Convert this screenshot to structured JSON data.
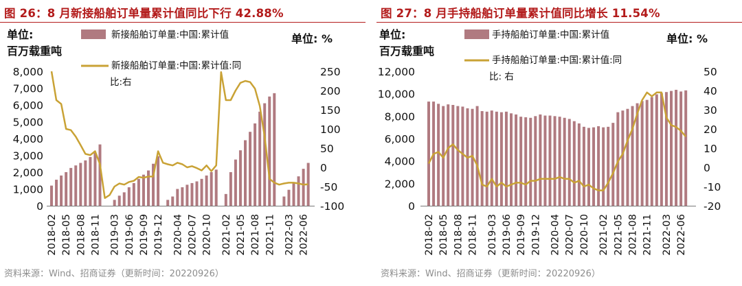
{
  "colors": {
    "bar": "#b07a80",
    "line": "#c9a235",
    "title": "#b31b1b",
    "source": "#8c8c8c"
  },
  "chart_data": [
    {
      "type": "bar",
      "title": "图 26：8 月新接船舶订单量累计值同比下行 42.88%",
      "source": "资料来源：Wind、招商证券（更新时间：20220926）",
      "left_unit": [
        "单位:",
        "百万载重吨"
      ],
      "right_unit": "单位:  %",
      "legend": [
        "新接船舶订单量:中国:累计值",
        "新接船舶订单量:中国:累计值:同",
        "比:右"
      ],
      "x_ticks": [
        "2018-02",
        "2018-05",
        "2018-08",
        "2018-11",
        "2019-03",
        "2019-06",
        "2019-09",
        "2019-12",
        "2020-04",
        "2020-07",
        "2020-10",
        "2021-02",
        "2021-05",
        "2021-08",
        "2021-11",
        "2022-03",
        "2022-06"
      ],
      "tick_months": [
        2,
        5,
        8,
        11,
        15,
        18,
        21,
        24,
        28,
        31,
        34,
        38,
        41,
        44,
        47,
        51,
        54
      ],
      "ylim_left": [
        0,
        8000
      ],
      "yticks_left": [
        0,
        1000,
        2000,
        3000,
        4000,
        5000,
        6000,
        7000,
        8000
      ],
      "yticks_left_labels": [
        "0",
        "1,000",
        "2,000",
        "3,000",
        "4,000",
        "5,000",
        "6,000",
        "7,000",
        "8,000"
      ],
      "ylim_right": [
        -100,
        250
      ],
      "yticks_right": [
        -100,
        -50,
        0,
        50,
        100,
        150,
        200,
        250
      ],
      "bar_series": {
        "name": "新接船舶订单量:中国:累计值",
        "months": [
          2,
          3,
          4,
          5,
          6,
          7,
          8,
          9,
          10,
          11,
          12,
          15,
          16,
          17,
          18,
          19,
          20,
          21,
          22,
          23,
          24,
          26,
          27,
          28,
          29,
          30,
          31,
          32,
          33,
          34,
          35,
          36,
          38,
          39,
          40,
          41,
          42,
          43,
          44,
          45,
          46,
          47,
          48,
          50,
          51,
          52,
          53,
          54,
          55
        ],
        "values": [
          1200,
          1550,
          1800,
          2000,
          2250,
          2400,
          2550,
          2700,
          2900,
          3150,
          3650,
          350,
          600,
          800,
          1100,
          1350,
          1600,
          1850,
          2100,
          2500,
          2950,
          350,
          550,
          1000,
          1100,
          1250,
          1350,
          1450,
          1600,
          1800,
          2000,
          2150,
          700,
          2000,
          2750,
          3300,
          3900,
          4400,
          4900,
          5600,
          6100,
          6500,
          6700,
          550,
          950,
          1350,
          1750,
          2200,
          2550
        ]
      },
      "line_series": {
        "name": "新接船舶订单量:中国:累计值:同比",
        "months": [
          2,
          3,
          4,
          5,
          6,
          7,
          8,
          9,
          10,
          11,
          12,
          13,
          14,
          15,
          16,
          17,
          18,
          19,
          20,
          21,
          22,
          23,
          24,
          25,
          26,
          27,
          28,
          29,
          30,
          31,
          32,
          33,
          34,
          35,
          36,
          37,
          38,
          39,
          40,
          41,
          42,
          43,
          44,
          45,
          46,
          47,
          48,
          49,
          50,
          51,
          52,
          53,
          54,
          55
        ],
        "values": [
          250,
          175,
          165,
          100,
          97,
          80,
          58,
          35,
          32,
          42,
          8,
          -80,
          -72,
          -50,
          -42,
          -45,
          -38,
          -35,
          -25,
          -27,
          -24,
          -24,
          42,
          12,
          8,
          5,
          12,
          8,
          0,
          3,
          -2,
          -8,
          5,
          -10,
          5,
          248,
          175,
          175,
          200,
          220,
          225,
          222,
          205,
          160,
          80,
          -30,
          -40,
          -45,
          -42,
          -40,
          -40,
          -42,
          -45,
          -44
        ]
      }
    },
    {
      "type": "bar",
      "title": "图 27：8 月手持船舶订单量累计值同比增长 11.54%",
      "source": "资料来源：Wind、招商证券（更新时间：20220926）",
      "left_unit": [
        "单位:",
        "百万载重吨"
      ],
      "right_unit": "单位:  %",
      "legend": [
        "手持船舶订单量:中国:累计值",
        "手持船舶订单量:中国:累计值:同",
        "比:  右"
      ],
      "x_ticks": [
        "2018-02",
        "2018-05",
        "2018-08",
        "2018-11",
        "2019-03",
        "2019-06",
        "2019-09",
        "2019-12",
        "2020-04",
        "2020-07",
        "2020-10",
        "2021-02",
        "2021-05",
        "2021-08",
        "2021-11",
        "2022-03",
        "2022-06"
      ],
      "tick_months": [
        2,
        5,
        8,
        11,
        15,
        18,
        21,
        24,
        28,
        31,
        34,
        38,
        41,
        44,
        47,
        51,
        54
      ],
      "ylim_left": [
        0,
        12000
      ],
      "yticks_left": [
        0,
        2000,
        4000,
        6000,
        8000,
        10000,
        12000
      ],
      "yticks_left_labels": [
        "0",
        "2,000",
        "4,000",
        "6,000",
        "8,000",
        "10,000",
        "12,000"
      ],
      "ylim_right": [
        -20,
        50
      ],
      "yticks_right": [
        -20,
        -10,
        0,
        10,
        20,
        30,
        40,
        50
      ],
      "bar_series": {
        "name": "手持船舶订单量:中国:累计值",
        "months": [
          2,
          3,
          4,
          5,
          6,
          7,
          8,
          9,
          10,
          11,
          12,
          13,
          14,
          15,
          16,
          17,
          18,
          19,
          20,
          21,
          22,
          23,
          24,
          25,
          26,
          27,
          28,
          29,
          30,
          31,
          32,
          33,
          34,
          35,
          36,
          37,
          38,
          39,
          40,
          41,
          42,
          43,
          44,
          45,
          46,
          47,
          48,
          49,
          50,
          51,
          52,
          53,
          54,
          55
        ],
        "values": [
          9300,
          9300,
          9100,
          8900,
          9050,
          9000,
          8900,
          8850,
          8700,
          8650,
          8900,
          8450,
          8400,
          8500,
          8400,
          8350,
          8400,
          8250,
          8150,
          7950,
          7900,
          7850,
          8000,
          8150,
          8050,
          8050,
          8000,
          7950,
          7850,
          7750,
          7550,
          7350,
          7050,
          6950,
          7000,
          7100,
          7000,
          7050,
          7400,
          8350,
          8500,
          8650,
          8900,
          9150,
          9350,
          9450,
          9700,
          9950,
          10050,
          10150,
          10250,
          10350,
          10200,
          10300
        ]
      },
      "line_series": {
        "name": "手持船舶订单量:中国:累计值:同比",
        "months": [
          2,
          3,
          4,
          5,
          6,
          7,
          8,
          9,
          10,
          11,
          12,
          13,
          14,
          15,
          16,
          17,
          18,
          19,
          20,
          21,
          22,
          23,
          24,
          25,
          26,
          27,
          28,
          29,
          30,
          31,
          32,
          33,
          34,
          35,
          36,
          37,
          38,
          39,
          40,
          41,
          42,
          43,
          44,
          45,
          46,
          47,
          48,
          49,
          50,
          51,
          52,
          53,
          54,
          55
        ],
        "values": [
          2,
          7,
          8,
          5,
          10,
          12,
          9,
          7,
          5,
          6,
          1,
          -9,
          -10,
          -6,
          -10,
          -8,
          -10,
          -9,
          -8,
          -8,
          -9,
          -7,
          -7,
          -6,
          -6,
          -6,
          -6,
          -5,
          -6,
          -6,
          -8,
          -7,
          -10,
          -9,
          -11,
          -12,
          -12,
          -8,
          -3,
          3,
          7,
          14,
          20,
          28,
          35,
          39,
          37,
          39,
          39,
          26,
          22,
          21,
          19,
          16
        ]
      }
    }
  ]
}
